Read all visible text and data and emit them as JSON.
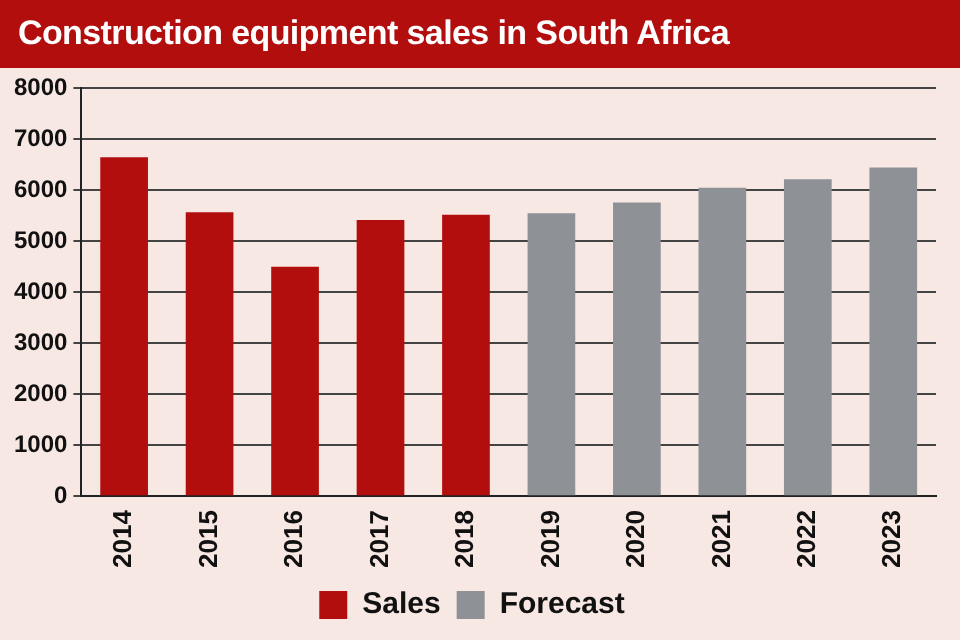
{
  "chart_data": {
    "type": "bar",
    "title": "Construction equipment sales in South Africa",
    "categories": [
      "2014",
      "2015",
      "2016",
      "2017",
      "2018",
      "2019",
      "2020",
      "2021",
      "2022",
      "2023"
    ],
    "series": [
      {
        "name": "Sales",
        "color": "#b20e0e",
        "values": [
          6650,
          5570,
          4500,
          5420,
          5520,
          null,
          null,
          null,
          null,
          null
        ]
      },
      {
        "name": "Forecast",
        "color": "#8e9196",
        "values": [
          null,
          null,
          null,
          null,
          null,
          5550,
          5760,
          6050,
          6220,
          6450
        ]
      }
    ],
    "stacked": true,
    "ylim": [
      0,
      8000
    ],
    "yticks": [
      0,
      1000,
      2000,
      3000,
      4000,
      5000,
      6000,
      7000,
      8000
    ],
    "grid": "y",
    "legend": "bottom"
  }
}
